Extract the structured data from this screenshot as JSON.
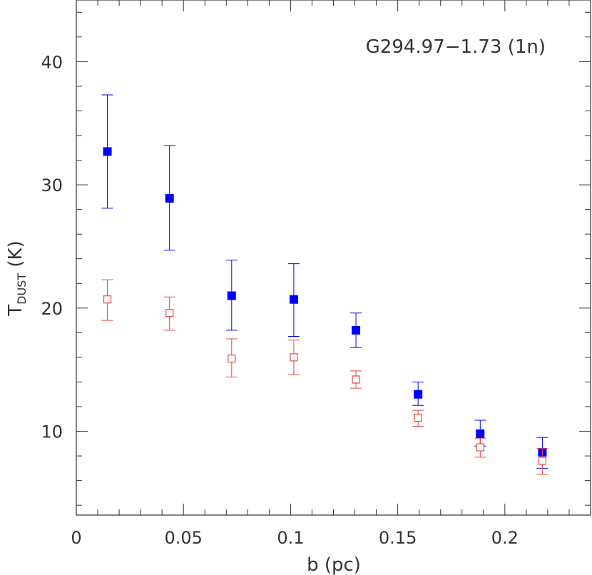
{
  "chart_data": {
    "type": "scatter",
    "title": "",
    "annotation": "G294.97−1.73 (1n)",
    "xlabel": "b (pc)",
    "ylabel_main": "T",
    "ylabel_sub": "DUST",
    "ylabel_units": " (K)",
    "xlim": [
      0,
      0.24
    ],
    "ylim": [
      3.2,
      45
    ],
    "x_ticks": [
      0,
      0.05,
      0.1,
      0.15,
      0.2
    ],
    "x_tick_labels": [
      "0",
      "0.05",
      "0.1",
      "0.15",
      "0.2"
    ],
    "y_ticks": [
      10,
      20,
      30,
      40
    ],
    "y_tick_labels": [
      "10",
      "20",
      "30",
      "40"
    ],
    "grid": false,
    "series": [
      {
        "marker": "filled-square",
        "color": "#0000ff",
        "points": [
          {
            "x": 0.0145,
            "y": 32.7,
            "yerr_low": 28.1,
            "yerr_high": 37.3
          },
          {
            "x": 0.0435,
            "y": 28.9,
            "yerr_low": 24.7,
            "yerr_high": 33.2
          },
          {
            "x": 0.0725,
            "y": 21.0,
            "yerr_low": 18.2,
            "yerr_high": 23.9
          },
          {
            "x": 0.1015,
            "y": 20.7,
            "yerr_low": 17.7,
            "yerr_high": 23.6
          },
          {
            "x": 0.1305,
            "y": 18.2,
            "yerr_low": 16.8,
            "yerr_high": 19.6
          },
          {
            "x": 0.1595,
            "y": 13.0,
            "yerr_low": 12.1,
            "yerr_high": 14.0
          },
          {
            "x": 0.1885,
            "y": 9.8,
            "yerr_low": 8.8,
            "yerr_high": 10.9
          },
          {
            "x": 0.2175,
            "y": 8.3,
            "yerr_low": 7.0,
            "yerr_high": 9.5
          }
        ]
      },
      {
        "marker": "open-square",
        "color": "#e84848",
        "points": [
          {
            "x": 0.0145,
            "y": 20.7,
            "yerr_low": 19.0,
            "yerr_high": 22.3
          },
          {
            "x": 0.0435,
            "y": 19.6,
            "yerr_low": 18.2,
            "yerr_high": 20.9
          },
          {
            "x": 0.0725,
            "y": 15.9,
            "yerr_low": 14.4,
            "yerr_high": 17.5
          },
          {
            "x": 0.1015,
            "y": 16.0,
            "yerr_low": 14.6,
            "yerr_high": 17.4
          },
          {
            "x": 0.1305,
            "y": 14.2,
            "yerr_low": 13.5,
            "yerr_high": 14.9
          },
          {
            "x": 0.1595,
            "y": 11.1,
            "yerr_low": 10.4,
            "yerr_high": 11.7
          },
          {
            "x": 0.1885,
            "y": 8.7,
            "yerr_low": 7.9,
            "yerr_high": 9.4
          },
          {
            "x": 0.2175,
            "y": 7.6,
            "yerr_low": 6.5,
            "yerr_high": 8.6
          }
        ]
      }
    ]
  }
}
